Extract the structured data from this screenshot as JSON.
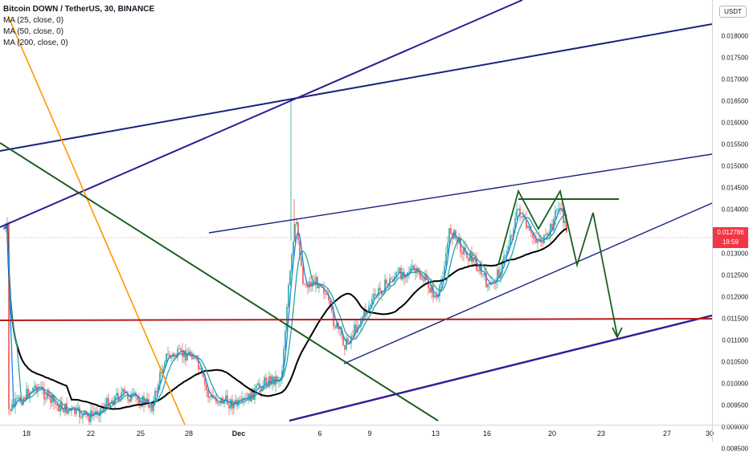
{
  "legend": {
    "symbol": "Bitcoin DOWN / TetherUS, 30, BINANCE",
    "ma25": "MA (25, close, 0)",
    "ma50": "MA (50, close, 0)",
    "ma200": "MA (200, close, 0)"
  },
  "price_axis": {
    "currency": "USDT",
    "ticks": [
      "0.018000",
      "0.017500",
      "0.017000",
      "0.016500",
      "0.016000",
      "0.015500",
      "0.015000",
      "0.014500",
      "0.014000",
      "0.013500",
      "0.013000",
      "0.012500",
      "0.012000",
      "0.011500",
      "0.011000",
      "0.010500",
      "0.010000",
      "0.009500",
      "0.009000",
      "0.008500"
    ],
    "last_price": "0.012786",
    "countdown": "19:59"
  },
  "time_axis": {
    "ticks": [
      {
        "label": "18",
        "bold": false
      },
      {
        "label": "22",
        "bold": false
      },
      {
        "label": "25",
        "bold": false
      },
      {
        "label": "28",
        "bold": false
      },
      {
        "label": "Dec",
        "bold": true
      },
      {
        "label": "6",
        "bold": false
      },
      {
        "label": "9",
        "bold": false
      },
      {
        "label": "13",
        "bold": false
      },
      {
        "label": "16",
        "bold": false
      },
      {
        "label": "20",
        "bold": false
      },
      {
        "label": "23",
        "bold": false
      },
      {
        "label": "27",
        "bold": false
      },
      {
        "label": "30",
        "bold": false
      }
    ]
  },
  "colors": {
    "up_candle": "#26a69a",
    "down_candle": "#ef5350",
    "ma25": "#1e88e5",
    "ma50": "#26a69a",
    "ma200": "#000000",
    "trend_navy": "#1a237e",
    "trend_indigo": "#311b92",
    "trend_orange": "#ff9800",
    "trend_green": "#1b5e20",
    "pattern_green": "#1b5e20",
    "support_red": "#b71c1c",
    "price_tag": "#f23645"
  }
}
